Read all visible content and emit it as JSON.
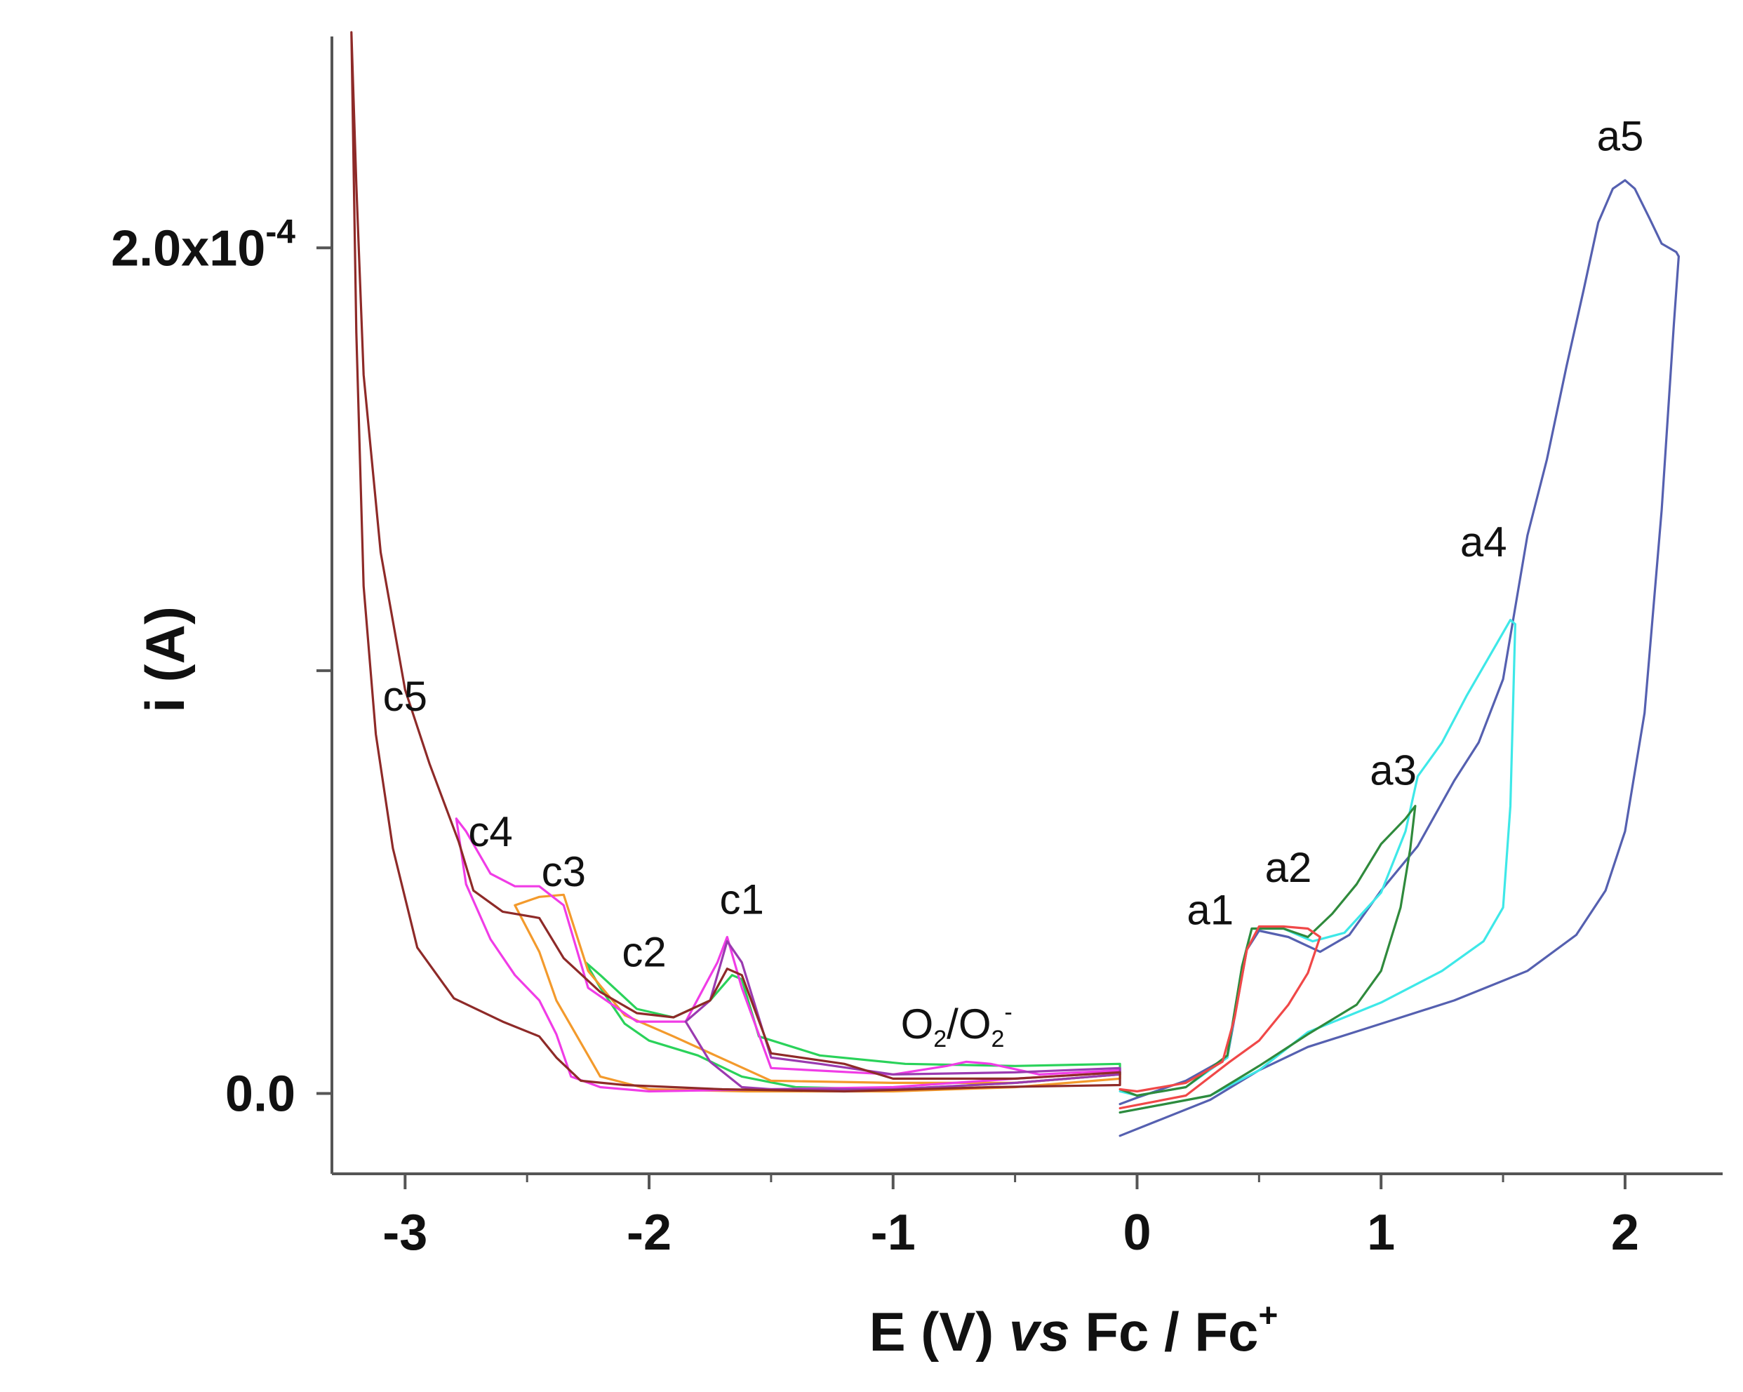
{
  "chart_data": {
    "type": "line",
    "title": "",
    "xlabel": {
      "prefix": "E (V) ",
      "italic": "vs",
      "suffix": " Fc / Fc",
      "sup": "+"
    },
    "ylabel": "i (A)",
    "xlim": [
      -3.3,
      2.4
    ],
    "ylim": [
      -1.9e-05,
      0.00025
    ],
    "x_ticks": [
      {
        "value": -3,
        "label": "-3"
      },
      {
        "value": -2,
        "label": "-2"
      },
      {
        "value": -1,
        "label": "-1"
      },
      {
        "value": 0,
        "label": "0"
      },
      {
        "value": 1,
        "label": "1"
      },
      {
        "value": 2,
        "label": "2"
      }
    ],
    "y_ticks": [
      {
        "value": 0,
        "label": "0.0"
      },
      {
        "value": 0.0001,
        "label": ""
      },
      {
        "value": 0.0002,
        "label": "2.0x10",
        "sup": "-4"
      }
    ],
    "annotations": [
      {
        "text": "c5",
        "x": -3.0,
        "y": 9.05e-05
      },
      {
        "text": "c4",
        "x": -2.65,
        "y": 5.85e-05
      },
      {
        "text": "c3",
        "x": -2.35,
        "y": 4.9e-05
      },
      {
        "text": "c2",
        "x": -2.02,
        "y": 3e-05
      },
      {
        "text": "c1",
        "x": -1.62,
        "y": 4.25e-05
      },
      {
        "text": "a1",
        "x": 0.3,
        "y": 4e-05
      },
      {
        "text": "a2",
        "x": 0.62,
        "y": 5e-05
      },
      {
        "text": "a3",
        "x": 1.05,
        "y": 7.3e-05
      },
      {
        "text": "a4",
        "x": 1.42,
        "y": 0.000127
      },
      {
        "text": "a5",
        "x": 1.98,
        "y": 0.000223
      },
      {
        "text": "O2/O2-",
        "x": -0.74,
        "y": 1.3e-05
      }
    ],
    "series": [
      {
        "name": "blue (a5)",
        "color": "#5560b0",
        "segments": [
          [
            [
              -0.07,
              -1e-05
            ],
            [
              0.3,
              -1.5e-06
            ],
            [
              0.5,
              5.5e-06
            ],
            [
              0.7,
              1.1e-05
            ],
            [
              1.0,
              1.65e-05
            ],
            [
              1.3,
              2.2e-05
            ],
            [
              1.6,
              2.9e-05
            ],
            [
              1.8,
              3.75e-05
            ],
            [
              1.92,
              4.8e-05
            ],
            [
              2.0,
              6.2e-05
            ],
            [
              2.08,
              9e-05
            ],
            [
              2.15,
              0.000138
            ],
            [
              2.2,
              0.000182
            ],
            [
              2.22,
              0.000198
            ],
            [
              2.21,
              0.000199
            ],
            [
              2.15,
              0.000201
            ],
            [
              2.1,
              0.000207
            ],
            [
              2.04,
              0.000214
            ],
            [
              2.0,
              0.000216
            ],
            [
              1.95,
              0.000214
            ],
            [
              1.89,
              0.000206
            ],
            [
              1.83,
              0.00019
            ],
            [
              1.76,
              0.000172
            ],
            [
              1.68,
              0.00015
            ],
            [
              1.6,
              0.000132
            ],
            [
              1.5,
              9.8e-05
            ],
            [
              1.4,
              8.3e-05
            ],
            [
              1.3,
              7.4e-05
            ],
            [
              1.15,
              5.85e-05
            ],
            [
              1.0,
              4.8e-05
            ],
            [
              0.87,
              3.75e-05
            ],
            [
              0.75,
              3.35e-05
            ],
            [
              0.62,
              3.7e-05
            ],
            [
              0.5,
              3.85e-05
            ],
            [
              0.45,
              3.4e-05
            ],
            [
              0.37,
              8.5e-06
            ],
            [
              0.2,
              3e-06
            ],
            [
              0.0,
              -1e-06
            ],
            [
              -0.07,
              -2.5e-06
            ]
          ]
        ]
      },
      {
        "name": "cyan (a4)",
        "color": "#3ee8e8",
        "segments": [
          [
            [
              -0.07,
              -4.5e-06
            ],
            [
              0.3,
              -5e-07
            ],
            [
              0.5,
              5.5e-06
            ],
            [
              0.7,
              1.45e-05
            ],
            [
              1.0,
              2.15e-05
            ],
            [
              1.25,
              2.9e-05
            ],
            [
              1.42,
              3.6e-05
            ],
            [
              1.5,
              4.4e-05
            ],
            [
              1.53,
              6.8e-05
            ],
            [
              1.55,
              0.000111
            ],
            [
              1.53,
              0.000112
            ],
            [
              1.45,
              0.000104
            ],
            [
              1.35,
              9.4e-05
            ],
            [
              1.25,
              8.3e-05
            ],
            [
              1.15,
              7.5e-05
            ],
            [
              1.1,
              6.2e-05
            ],
            [
              1.0,
              4.75e-05
            ],
            [
              0.85,
              3.8e-05
            ],
            [
              0.72,
              3.6e-05
            ],
            [
              0.6,
              3.9e-05
            ],
            [
              0.47,
              3.9e-05
            ],
            [
              0.43,
              3e-05
            ],
            [
              0.37,
              8.5e-06
            ],
            [
              0.2,
              1.5e-06
            ],
            [
              0.0,
              -5e-07
            ],
            [
              -0.07,
              5e-07
            ]
          ]
        ]
      },
      {
        "name": "dark green (a3)",
        "color": "#2f8a3c",
        "segments": [
          [
            [
              -0.07,
              -4.5e-06
            ],
            [
              0.3,
              -5e-07
            ],
            [
              0.5,
              6.5e-06
            ],
            [
              0.7,
              1.4e-05
            ],
            [
              0.9,
              2.1e-05
            ],
            [
              1.0,
              2.9e-05
            ],
            [
              1.08,
              4.4e-05
            ],
            [
              1.12,
              5.8e-05
            ],
            [
              1.14,
              6.8e-05
            ],
            [
              1.1,
              6.5e-05
            ],
            [
              1.0,
              5.9e-05
            ],
            [
              0.9,
              4.95e-05
            ],
            [
              0.8,
              4.25e-05
            ],
            [
              0.7,
              3.7e-05
            ],
            [
              0.6,
              3.9e-05
            ],
            [
              0.47,
              3.9e-05
            ],
            [
              0.43,
              3e-05
            ],
            [
              0.37,
              9e-06
            ],
            [
              0.2,
              1.5e-06
            ],
            [
              0.0,
              -5e-07
            ],
            [
              -0.07,
              1e-06
            ]
          ]
        ]
      },
      {
        "name": "red (a2)",
        "color": "#f04848",
        "segments": [
          [
            [
              -0.07,
              -3.5e-06
            ],
            [
              0.2,
              -5e-07
            ],
            [
              0.38,
              7.5e-06
            ],
            [
              0.5,
              1.25e-05
            ],
            [
              0.62,
              2.1e-05
            ],
            [
              0.7,
              2.85e-05
            ],
            [
              0.75,
              3.7e-05
            ],
            [
              0.7,
              3.9e-05
            ],
            [
              0.6,
              3.95e-05
            ],
            [
              0.5,
              3.95e-05
            ],
            [
              0.45,
              3.4e-05
            ],
            [
              0.4,
              1.8e-05
            ],
            [
              0.35,
              7.5e-06
            ],
            [
              0.2,
              2.5e-06
            ],
            [
              0.0,
              5e-07
            ],
            [
              -0.07,
              1e-06
            ]
          ]
        ]
      },
      {
        "name": "green (c3)",
        "color": "#2ad25a",
        "segments": [
          [
            [
              -2.26,
              3.1e-05
            ],
            [
              -2.2,
              2.5e-05
            ],
            [
              -2.1,
              1.65e-05
            ],
            [
              -2.0,
              1.25e-05
            ],
            [
              -1.8,
              9e-06
            ],
            [
              -1.62,
              4e-06
            ],
            [
              -1.4,
              1.5e-06
            ],
            [
              -1.0,
              1e-06
            ],
            [
              -0.5,
              2.5e-06
            ],
            [
              -0.07,
              4.5e-06
            ],
            [
              -0.07,
              7e-06
            ],
            [
              -0.5,
              6.5e-06
            ],
            [
              -0.95,
              7e-06
            ],
            [
              -1.3,
              9e-06
            ],
            [
              -1.55,
              1.35e-05
            ],
            [
              -1.62,
              2.7e-05
            ],
            [
              -1.66,
              2.8e-05
            ],
            [
              -1.75,
              2.2e-05
            ],
            [
              -1.9,
              1.8e-05
            ],
            [
              -2.05,
              2e-05
            ],
            [
              -2.2,
              2.8e-05
            ],
            [
              -2.26,
              3.1e-05
            ]
          ]
        ]
      },
      {
        "name": "orange (c4)",
        "color": "#f39a2c",
        "segments": [
          [
            [
              -2.55,
              4.45e-05
            ],
            [
              -2.45,
              3.35e-05
            ],
            [
              -2.38,
              2.2e-05
            ],
            [
              -2.32,
              1.6e-05
            ],
            [
              -2.2,
              4e-06
            ],
            [
              -2.0,
              1e-06
            ],
            [
              -1.6,
              5e-07
            ],
            [
              -1.0,
              5e-07
            ],
            [
              -0.5,
              1.5e-06
            ],
            [
              -0.07,
              3.5e-06
            ],
            [
              -0.07,
              4.5e-06
            ],
            [
              -0.5,
              2.5e-06
            ],
            [
              -1.0,
              2.5e-06
            ],
            [
              -1.5,
              3e-06
            ],
            [
              -1.9,
              1.35e-05
            ],
            [
              -2.1,
              1.85e-05
            ],
            [
              -2.25,
              2.9e-05
            ],
            [
              -2.35,
              4.7e-05
            ],
            [
              -2.45,
              4.65e-05
            ],
            [
              -2.55,
              4.45e-05
            ]
          ]
        ]
      },
      {
        "name": "magenta (c4)",
        "color": "#f03ce6",
        "segments": [
          [
            [
              -2.79,
              6.5e-05
            ],
            [
              -2.75,
              4.95e-05
            ],
            [
              -2.65,
              3.65e-05
            ],
            [
              -2.55,
              2.8e-05
            ],
            [
              -2.45,
              2.2e-05
            ],
            [
              -2.38,
              1.4e-05
            ],
            [
              -2.32,
              4e-06
            ],
            [
              -2.2,
              1.5e-06
            ],
            [
              -2.0,
              5e-07
            ],
            [
              -1.5,
              1e-06
            ],
            [
              -1.0,
              1.5e-06
            ],
            [
              -0.5,
              3.5e-06
            ],
            [
              -0.07,
              5e-06
            ],
            [
              -0.07,
              5.5e-06
            ],
            [
              -0.4,
              4.5e-06
            ],
            [
              -0.6,
              7e-06
            ],
            [
              -0.7,
              7.5e-06
            ],
            [
              -0.78,
              6.5e-06
            ],
            [
              -1.0,
              4.5e-06
            ],
            [
              -1.5,
              6e-06
            ],
            [
              -1.62,
              2.5e-05
            ],
            [
              -1.68,
              3.7e-05
            ],
            [
              -1.72,
              3.1e-05
            ],
            [
              -1.85,
              1.7e-05
            ],
            [
              -2.05,
              1.7e-05
            ],
            [
              -2.25,
              2.5e-05
            ],
            [
              -2.35,
              4.45e-05
            ],
            [
              -2.45,
              4.9e-05
            ],
            [
              -2.55,
              4.9e-05
            ],
            [
              -2.65,
              5.2e-05
            ],
            [
              -2.75,
              6.2e-05
            ],
            [
              -2.79,
              6.5e-05
            ]
          ]
        ]
      },
      {
        "name": "purple (c1)",
        "color": "#9a3ab0",
        "segments": [
          [
            [
              -1.85,
              1.7e-05
            ],
            [
              -1.75,
              2.2e-05
            ],
            [
              -1.68,
              3.6e-05
            ],
            [
              -1.62,
              3.1e-05
            ],
            [
              -1.5,
              8.5e-06
            ],
            [
              -1.3,
              7e-06
            ],
            [
              -1.0,
              4.5e-06
            ],
            [
              -0.5,
              5e-06
            ],
            [
              -0.07,
              6e-06
            ],
            [
              -0.07,
              4.5e-06
            ],
            [
              -0.5,
              2.5e-06
            ],
            [
              -1.0,
              1e-06
            ],
            [
              -1.5,
              1e-06
            ],
            [
              -1.62,
              1.5e-06
            ],
            [
              -1.75,
              7.5e-06
            ],
            [
              -1.85,
              1.7e-05
            ]
          ]
        ]
      },
      {
        "name": "brown (c5)",
        "color": "#8e2a28",
        "segments": [
          [
            [
              -3.22,
              0.000251
            ],
            [
              -3.2,
              0.000215
            ],
            [
              -3.17,
              0.00017
            ],
            [
              -3.1,
              0.000128
            ],
            [
              -3.0,
              9.55e-05
            ],
            [
              -2.9,
              7.8e-05
            ],
            [
              -2.78,
              5.95e-05
            ],
            [
              -2.72,
              4.8e-05
            ],
            [
              -2.6,
              4.3e-05
            ],
            [
              -2.45,
              4.15e-05
            ],
            [
              -2.35,
              3.2e-05
            ],
            [
              -2.2,
              2.4e-05
            ],
            [
              -2.05,
              1.9e-05
            ],
            [
              -1.9,
              1.8e-05
            ],
            [
              -1.75,
              2.2e-05
            ],
            [
              -1.68,
              2.95e-05
            ],
            [
              -1.62,
              2.8e-05
            ],
            [
              -1.5,
              9.5e-06
            ],
            [
              -1.2,
              7e-06
            ],
            [
              -1.0,
              3.5e-06
            ],
            [
              -0.5,
              3.5e-06
            ],
            [
              -0.07,
              5e-06
            ],
            [
              -0.07,
              2e-06
            ],
            [
              -0.6,
              1.5e-06
            ],
            [
              -1.2,
              5e-07
            ],
            [
              -1.7,
              1e-06
            ],
            [
              -2.1,
              2e-06
            ],
            [
              -2.28,
              3e-06
            ],
            [
              -2.38,
              8.5e-06
            ],
            [
              -2.45,
              1.35e-05
            ],
            [
              -2.6,
              1.7e-05
            ],
            [
              -2.8,
              2.25e-05
            ],
            [
              -2.95,
              3.45e-05
            ],
            [
              -3.05,
              5.8e-05
            ],
            [
              -3.12,
              8.5e-05
            ],
            [
              -3.17,
              0.00012
            ],
            [
              -3.2,
              0.00018
            ],
            [
              -3.22,
              0.000251
            ]
          ]
        ]
      }
    ]
  }
}
